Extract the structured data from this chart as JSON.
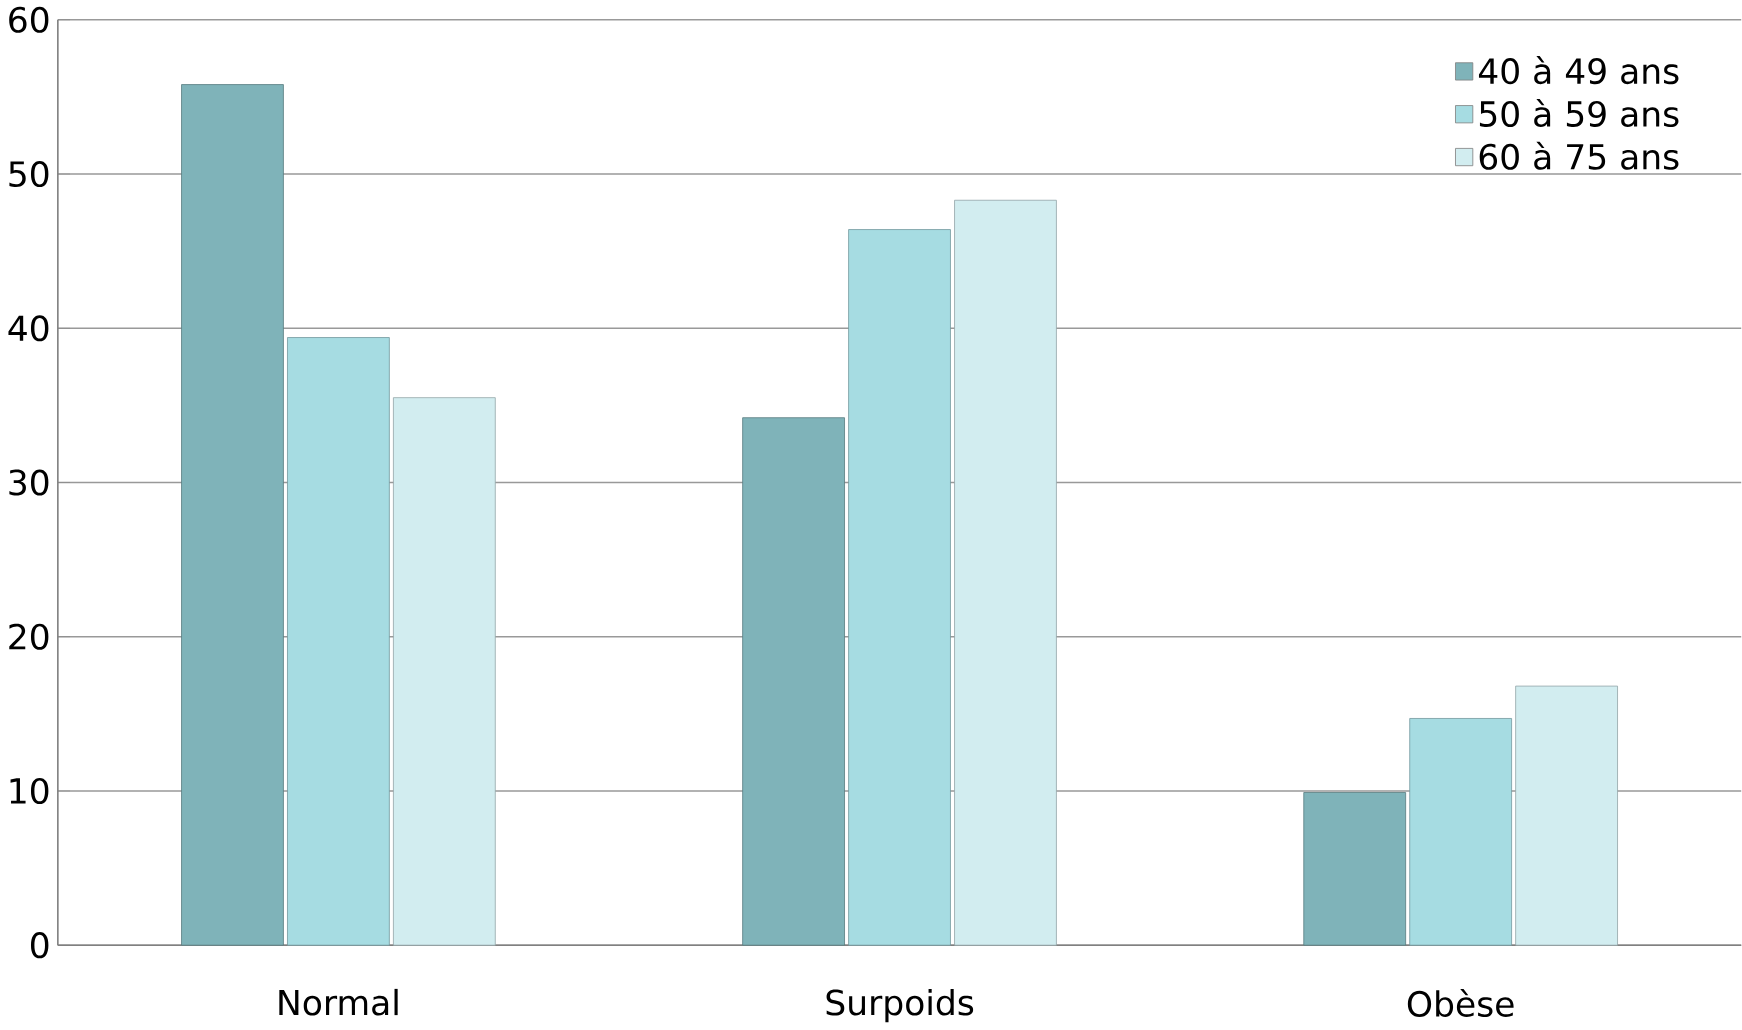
{
  "chart_data": {
    "type": "bar",
    "categories": [
      "Normal",
      "Surpoids",
      "Obèse"
    ],
    "series": [
      {
        "name": "40 à 49 ans",
        "color": "#7fb3b9",
        "values": [
          55.8,
          34.2,
          9.9
        ]
      },
      {
        "name": "50 à 59 ans",
        "color": "#a6dce2",
        "values": [
          39.4,
          46.4,
          14.7
        ]
      },
      {
        "name": "60 à 75 ans",
        "color": "#d2edf0",
        "values": [
          35.5,
          48.3,
          16.8
        ]
      }
    ],
    "ylim": [
      0,
      60
    ],
    "yticks": [
      0,
      10,
      20,
      30,
      40,
      50,
      60
    ],
    "grid": "y",
    "legend": "top right"
  }
}
